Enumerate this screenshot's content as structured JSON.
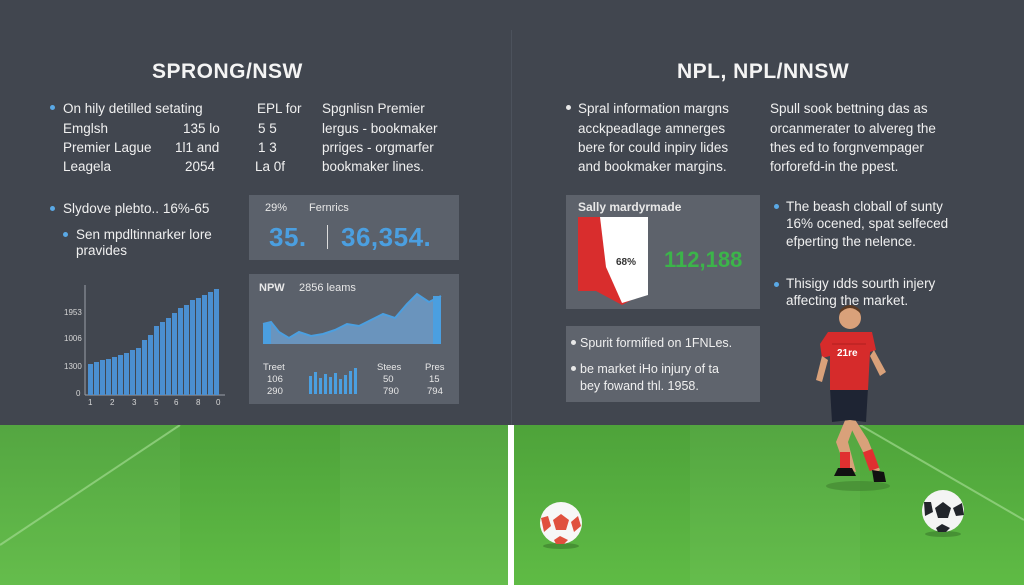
{
  "left": {
    "title": "SPRONG/NSW",
    "intro_lines": [
      "On hily detilled setating",
      "Emglsh",
      "Premier Lague",
      "Leagela"
    ],
    "col2": [
      [
        "EPL for",
        ""
      ],
      [
        "135 lo",
        "5  5"
      ],
      [
        "1l1 and",
        "1  3"
      ],
      [
        "2054",
        "La  0f"
      ]
    ],
    "col3_lines": [
      "Spgnlisn Premier",
      "lergus - bookmaker",
      "prriges - orgmarfer",
      "bookmaker lines."
    ],
    "bullet2": "Slydove plebto.. 16%-65",
    "bullet3_lines": [
      "Sen mpdltinnarker lore",
      "pravides"
    ],
    "bar_chart": {
      "y_labels": [
        "1953",
        "1006",
        "1300",
        "0"
      ],
      "x_labels": [
        "1",
        "2",
        "3",
        "5",
        "6",
        "8",
        "0"
      ]
    },
    "stat_card": {
      "percent": "29%",
      "label": "Fernrics",
      "value1": "35.",
      "value2": "36,354."
    },
    "line_card": {
      "header1": "NPW",
      "header2": "2856 leams",
      "col_a": [
        "Treet",
        "106",
        "290"
      ],
      "col_b": [
        "Stees",
        "50",
        "790"
      ],
      "col_c": [
        "Pres",
        "15",
        "794"
      ]
    }
  },
  "right": {
    "title": "NPL, NPL/NNSW",
    "p1_lines": [
      "Spral information margns",
      "acckpeadlage amnerges",
      "bere for could inpiry lides",
      "and bookmaker margins."
    ],
    "p2_lines": [
      "Spull sook bettning das as",
      "orcanmerater to alvereg the",
      "thes ed to forgnvempager",
      "forforefd-in the ppest."
    ],
    "red_card": {
      "title": "Sally mardyrmade",
      "percent": "68%",
      "value": "112,188"
    },
    "bullet_a_lines": [
      "The beash cloball of sunty",
      "16% ocened, spat selfeced",
      "efperting the nelence."
    ],
    "bullet_b_lines": [
      "Thisigy ıdds sourth injery",
      "affecting the market."
    ],
    "bottom_card": {
      "line1": "Spurit formified on 1FNLes.",
      "line2": "be market iHo injury of ta",
      "line3": "bey fowand thl. 1958."
    }
  },
  "player": {
    "shirt_text": "21re"
  },
  "colors": {
    "accent_blue": "#4b9fe0",
    "accent_green": "#3cb44a",
    "accent_red": "#d92d2d",
    "pitch": "#55ad3f"
  }
}
